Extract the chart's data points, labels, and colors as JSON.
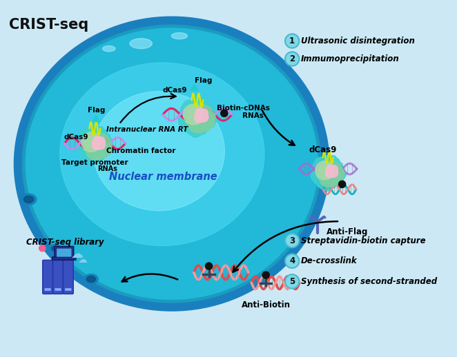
{
  "title": "CRIST-seq",
  "background_color": "#cce8f4",
  "steps": [
    {
      "num": "1",
      "text": "Ultrasonic disintegration"
    },
    {
      "num": "2",
      "text": "Immumoprecipitation"
    },
    {
      "num": "3",
      "text": "Streptavidin-biotin capture"
    },
    {
      "num": "4",
      "text": "De-crosslink"
    },
    {
      "num": "5",
      "text": "Synthesis of second-stranded"
    }
  ],
  "nuclear_membrane_text": "Nuclear membrane",
  "step_circle_color": "#7fd8e8",
  "step_circle_edge": "#4ab8cc",
  "title_color": "#111111"
}
